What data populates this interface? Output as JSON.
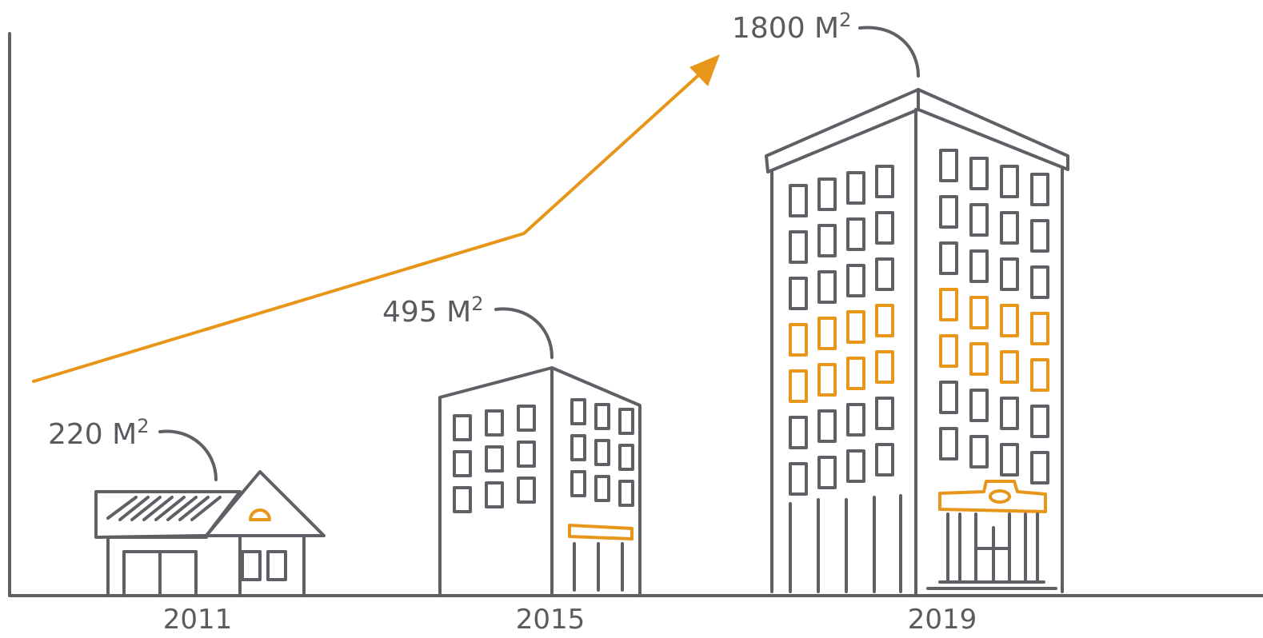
{
  "stages": [
    {
      "year": "2011",
      "area": "220 M",
      "exponent": "2"
    },
    {
      "year": "2015",
      "area": "495 M",
      "exponent": "2"
    },
    {
      "year": "2019",
      "area": "1800 M",
      "exponent": "2"
    }
  ]
}
